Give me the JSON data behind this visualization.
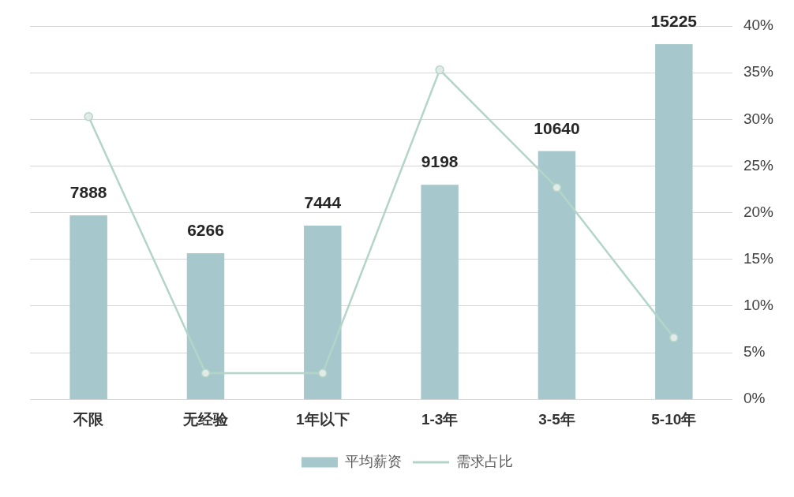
{
  "chart_data": {
    "type": "bar",
    "categories": [
      "不限",
      "无经验",
      "1年以下",
      "1-3年",
      "3-5年",
      "5-10年"
    ],
    "series": [
      {
        "name": "平均薪资",
        "color": "#a6c8cc",
        "values": [
          7888,
          6266,
          7444,
          9198,
          10640,
          15225
        ],
        "value_labels": [
          "7888",
          "6266",
          "7444",
          "9198",
          "10640",
          "15225"
        ]
      },
      {
        "name": "需求占比",
        "type": "line",
        "axis": "y2",
        "color": "#b3d5c7",
        "values": [
          30.3,
          2.8,
          2.8,
          35.3,
          22.7,
          6.6
        ]
      }
    ],
    "y2lim": [
      0,
      40
    ],
    "y2ticks": [
      {
        "value": 0,
        "label": "0%"
      },
      {
        "value": 5,
        "label": "5%"
      },
      {
        "value": 10,
        "label": "10%"
      },
      {
        "value": 15,
        "label": "15%"
      },
      {
        "value": 20,
        "label": "20%"
      },
      {
        "value": 25,
        "label": "25%"
      },
      {
        "value": 30,
        "label": "30%"
      },
      {
        "value": 35,
        "label": "35%"
      },
      {
        "value": 40,
        "label": "40%"
      }
    ],
    "grid": "y",
    "legend": "bottom",
    "marker": "circle",
    "line_style": "solid"
  }
}
